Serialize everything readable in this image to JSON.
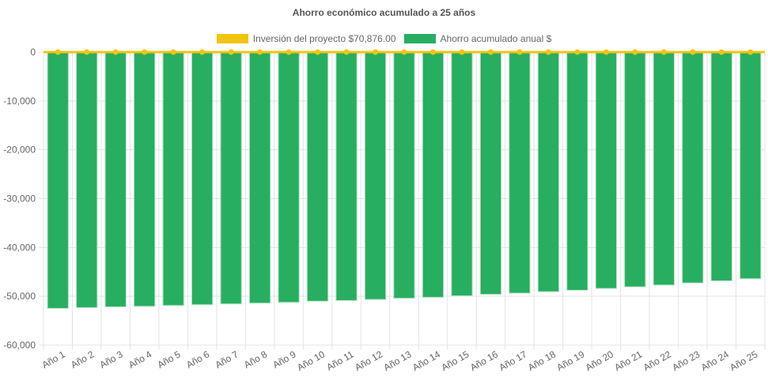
{
  "chart_data": {
    "type": "bar",
    "title": "Ahorro económico acumulado a 25 años",
    "categories": [
      "Año 1",
      "Año 2",
      "Año 3",
      "Año 4",
      "Año 5",
      "Año 6",
      "Año 7",
      "Año 8",
      "Año 9",
      "Año 10",
      "Año 11",
      "Año 12",
      "Año 13",
      "Año 14",
      "Año 15",
      "Año 16",
      "Año 17",
      "Año 18",
      "Año 19",
      "Año 20",
      "Año 21",
      "Año 22",
      "Año 23",
      "Año 24",
      "Año 25"
    ],
    "series": [
      {
        "name": "Inversión del proyecto $70,876.00",
        "type": "line",
        "color": "#f1c40f",
        "values": [
          0,
          0,
          0,
          0,
          0,
          0,
          0,
          0,
          0,
          0,
          0,
          0,
          0,
          0,
          0,
          0,
          0,
          0,
          0,
          0,
          0,
          0,
          0,
          0,
          0
        ]
      },
      {
        "name": "Ahorro acumulado anual $",
        "type": "bar",
        "color": "#27ae60",
        "values": [
          -52470,
          -52310,
          -52150,
          -52050,
          -51880,
          -51720,
          -51560,
          -51400,
          -51240,
          -51000,
          -50860,
          -50650,
          -50400,
          -50200,
          -49900,
          -49600,
          -49350,
          -49050,
          -48760,
          -48390,
          -48060,
          -47690,
          -47260,
          -46830,
          -46400
        ]
      }
    ],
    "yticks": [
      "0",
      "-10,000",
      "-20,000",
      "-30,000",
      "-40,000",
      "-50,000",
      "-60,000"
    ],
    "ytick_values": [
      0,
      -10000,
      -20000,
      -30000,
      -40000,
      -50000,
      -60000
    ],
    "ylim": [
      -60000,
      0
    ],
    "xlabel": "",
    "ylabel": "",
    "grid": true,
    "legend": "top"
  }
}
